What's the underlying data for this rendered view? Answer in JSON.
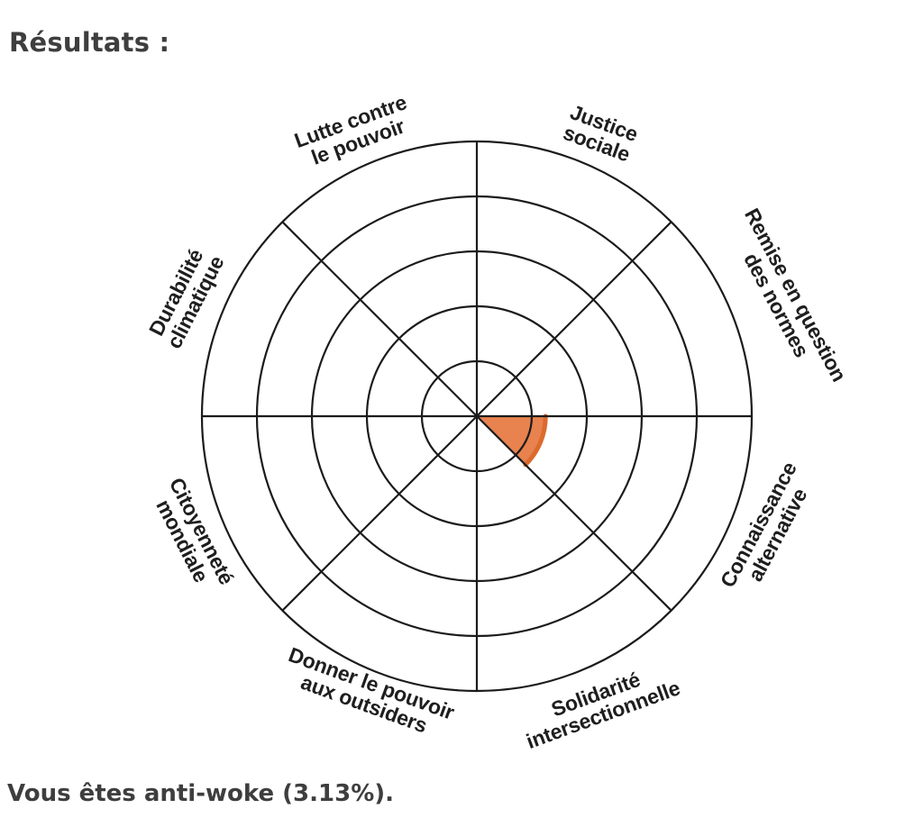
{
  "page": {
    "title": "Résultats :",
    "result_text": "Vous êtes anti-woke (3.13%)."
  },
  "chart_data": {
    "type": "bar",
    "coordinates": "polar",
    "title": "",
    "categories": [
      "Justice sociale",
      "Remise en question des normes",
      "Connaissance alternative",
      "Solidarité intersectionnelle",
      "Donner le pouvoir aux outsiders",
      "Citoyenneté mondiale",
      "Durabilité climatique",
      "Lutte contre le pouvoir"
    ],
    "values": [
      0,
      0,
      25,
      0,
      0,
      0,
      0,
      0
    ],
    "scale": {
      "min": 0,
      "max": 100,
      "rings": 5,
      "ring_step": 20
    },
    "spokes": 8,
    "grid": "on",
    "legend": "none",
    "wedge": {
      "category": "Connaissance alternative",
      "value": 25,
      "start_angle_deg": 0,
      "end_angle_deg": 45
    },
    "overall_percent": 3.13,
    "colors": {
      "grid": "#1b1b1b",
      "wedge_fill": "#e8824e",
      "wedge_stroke": "#dc6a2e",
      "label_text": "#1e1e1e",
      "body_text": "#3e3e3e"
    },
    "labels": [
      {
        "lines": [
          "Lutte contre",
          "le pouvoir"
        ]
      },
      {
        "lines": [
          "Justice",
          "sociale"
        ]
      },
      {
        "lines": [
          "Remise en question",
          "des normes"
        ]
      },
      {
        "lines": [
          "Connaissance",
          "alternative"
        ]
      },
      {
        "lines": [
          "Solidarité",
          "intersectionnelle"
        ]
      },
      {
        "lines": [
          "Donner le pouvoir",
          "aux outsiders"
        ]
      },
      {
        "lines": [
          "Citoyenneté",
          "mondiale"
        ]
      },
      {
        "lines": [
          "Durabilité",
          "climatique"
        ]
      }
    ]
  }
}
